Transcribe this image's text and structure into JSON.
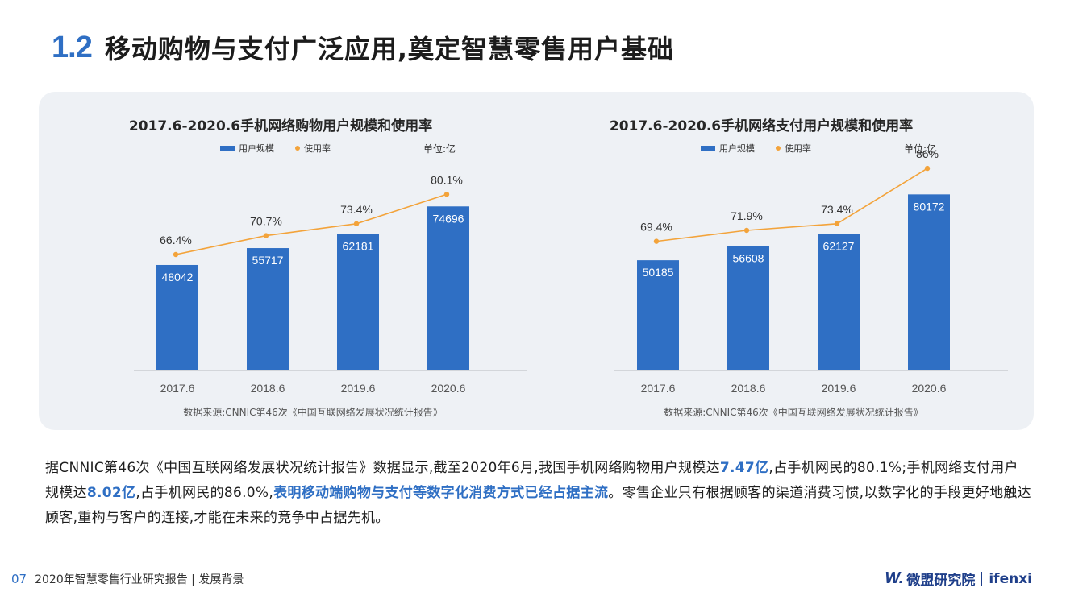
{
  "header": {
    "section_number": "1.2",
    "title": "移动购物与支付广泛应用,奠定智慧零售用户基础"
  },
  "charts": [
    {
      "title": "2017.6-2020.6手机网络购物用户规模和使用率",
      "legend_bar": "用户规模",
      "legend_line": "使用率",
      "unit": "单位:亿",
      "source": "数据来源:CNNIC第46次《中国互联网络发展状况统计报告》"
    },
    {
      "title": "2017.6-2020.6手机网络支付用户规模和使用率",
      "legend_bar": "用户规模",
      "legend_line": "使用率",
      "unit": "单位:亿",
      "source": "数据来源:CNNIC第46次《中国互联网络发展状况统计报告》"
    }
  ],
  "chart_data": [
    {
      "type": "bar",
      "title": "2017.6-2020.6手机网络购物用户规模和使用率",
      "categories": [
        "2017.6",
        "2018.6",
        "2019.6",
        "2020.6"
      ],
      "series": [
        {
          "name": "用户规模",
          "type": "bar",
          "values": [
            48042,
            55717,
            62181,
            74696
          ],
          "labels": [
            "48042",
            "55717",
            "62181",
            "74696"
          ]
        },
        {
          "name": "使用率",
          "type": "line",
          "values": [
            66.4,
            70.7,
            73.4,
            80.1
          ],
          "labels": [
            "66.4%",
            "70.7%",
            "73.4%",
            "80.1%"
          ]
        }
      ],
      "bar_max": 110000,
      "line_range": [
        40,
        95
      ],
      "colors": {
        "bar": "#2f6fc4",
        "line": "#f3a33a"
      }
    },
    {
      "type": "bar",
      "title": "2017.6-2020.6手机网络支付用户规模和使用率",
      "categories": [
        "2017.6",
        "2018.6",
        "2019.6",
        "2020.6"
      ],
      "series": [
        {
          "name": "用户规模",
          "type": "bar",
          "values": [
            50185,
            56608,
            62127,
            80172
          ],
          "labels": [
            "50185",
            "56608",
            "62127",
            "80172"
          ]
        },
        {
          "name": "使用率",
          "type": "line",
          "values": [
            69.4,
            71.9,
            73.4,
            86.0
          ],
          "labels": [
            "69.4%",
            "71.9%",
            "73.4%",
            "86%"
          ]
        }
      ],
      "bar_max": 110000,
      "line_range": [
        40,
        95
      ],
      "colors": {
        "bar": "#2f6fc4",
        "line": "#f3a33a"
      }
    }
  ],
  "body": {
    "p1": "据CNNIC第46次《中国互联网络发展状况统计报告》数据显示,截至2020年6月,我国手机网络购物用户规模达",
    "h1": "7.47亿",
    "p2": ",占手机网民的80.1%;手机网络支付用户规模达",
    "h2": "8.02亿",
    "p3": ",占手机网民的86.0%,",
    "h3": "表明移动端购物与支付等数字化消费方式已经占据主流",
    "p4": "。零售企业只有根据顾客的渠道消费习惯,以数字化的手段更好地触达顾客,重构与客户的连接,才能在未来的竞争中占据先机。"
  },
  "footer": {
    "page_number": "07",
    "report_title": "2020年智慧零售行业研究报告 | 发展背景",
    "logo_mark": "W.",
    "brand_cn": "微盟研究院",
    "brand_en": "ifenxi"
  }
}
